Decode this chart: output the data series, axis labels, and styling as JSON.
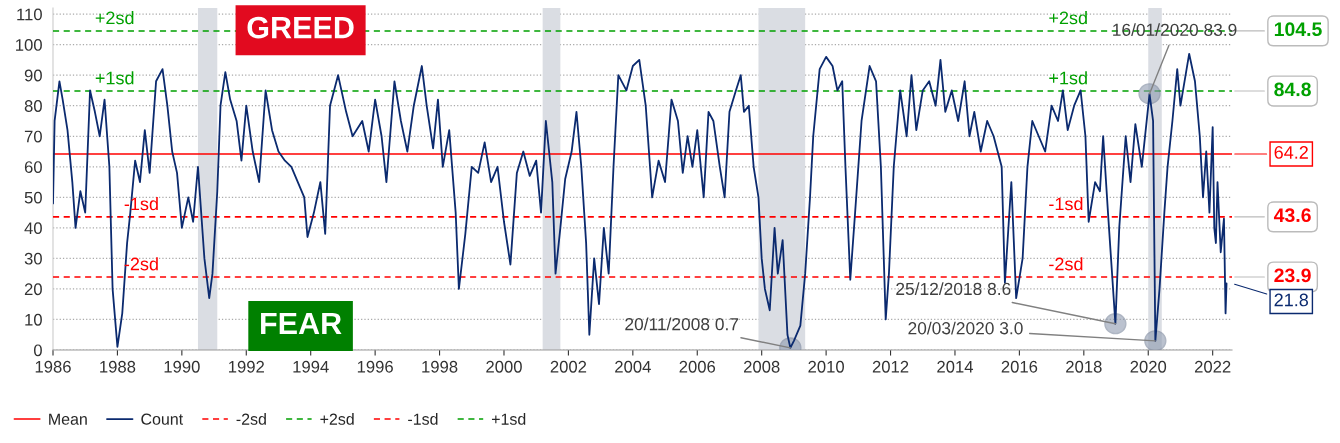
{
  "chart_data": {
    "type": "line",
    "x": [
      1986.0,
      1986.05,
      1986.2,
      1986.3,
      1986.45,
      1986.6,
      1986.7,
      1986.85,
      1987.0,
      1987.15,
      1987.3,
      1987.45,
      1987.6,
      1987.75,
      1987.85,
      1988.0,
      1988.15,
      1988.3,
      1988.4,
      1988.55,
      1988.7,
      1988.85,
      1989.0,
      1989.2,
      1989.4,
      1989.55,
      1989.7,
      1989.85,
      1990.0,
      1990.2,
      1990.35,
      1990.5,
      1990.7,
      1990.85,
      1990.95,
      1991.1,
      1991.2,
      1991.35,
      1991.5,
      1991.7,
      1991.85,
      1992.0,
      1992.2,
      1992.4,
      1992.6,
      1992.8,
      1993.0,
      1993.2,
      1993.4,
      1993.6,
      1993.8,
      1993.9,
      1994.1,
      1994.3,
      1994.45,
      1994.6,
      1994.85,
      1995.1,
      1995.3,
      1995.6,
      1995.8,
      1996.0,
      1996.2,
      1996.35,
      1996.6,
      1996.8,
      1997.0,
      1997.2,
      1997.45,
      1997.6,
      1997.8,
      1997.95,
      1998.1,
      1998.3,
      1998.5,
      1998.6,
      1998.8,
      1999.0,
      1999.2,
      1999.4,
      1999.6,
      1999.8,
      2000.0,
      2000.2,
      2000.4,
      2000.6,
      2000.8,
      2001.0,
      2001.15,
      2001.3,
      2001.5,
      2001.6,
      2001.75,
      2001.9,
      2002.1,
      2002.25,
      2002.4,
      2002.55,
      2002.65,
      2002.8,
      2002.95,
      2003.1,
      2003.25,
      2003.4,
      2003.55,
      2003.8,
      2004.0,
      2004.2,
      2004.4,
      2004.5,
      2004.6,
      2004.8,
      2005.0,
      2005.2,
      2005.4,
      2005.55,
      2005.7,
      2005.85,
      2006.0,
      2006.2,
      2006.35,
      2006.5,
      2006.7,
      2006.85,
      2007.0,
      2007.2,
      2007.35,
      2007.45,
      2007.6,
      2007.75,
      2007.9,
      2008.0,
      2008.1,
      2008.25,
      2008.4,
      2008.5,
      2008.65,
      2008.8,
      2008.89,
      2009.0,
      2009.2,
      2009.35,
      2009.5,
      2009.6,
      2009.8,
      2010.0,
      2010.2,
      2010.35,
      2010.5,
      2010.6,
      2010.75,
      2010.9,
      2011.1,
      2011.35,
      2011.55,
      2011.7,
      2011.85,
      2011.95,
      2012.1,
      2012.3,
      2012.5,
      2012.65,
      2012.8,
      2013.0,
      2013.2,
      2013.4,
      2013.55,
      2013.7,
      2013.9,
      2014.1,
      2014.3,
      2014.45,
      2014.6,
      2014.8,
      2015.0,
      2015.2,
      2015.45,
      2015.55,
      2015.75,
      2015.9,
      2016.1,
      2016.25,
      2016.4,
      2016.6,
      2016.8,
      2017.0,
      2017.2,
      2017.35,
      2017.5,
      2017.7,
      2017.9,
      2018.05,
      2018.15,
      2018.35,
      2018.5,
      2018.6,
      2018.75,
      2018.98,
      2019.1,
      2019.3,
      2019.45,
      2019.6,
      2019.8,
      2020.04,
      2020.15,
      2020.22,
      2020.35,
      2020.5,
      2020.6,
      2020.75,
      2020.9,
      2021.0,
      2021.27,
      2021.45,
      2021.6,
      2021.7,
      2021.8,
      2021.9,
      2022.0,
      2022.05,
      2022.1,
      2022.15,
      2022.25,
      2022.35,
      2022.4,
      2022.43
    ],
    "series": [
      {
        "name": "Count",
        "color": "#0b2a6f",
        "values": [
          48,
          75,
          88,
          82,
          72,
          55,
          40,
          52,
          45,
          85,
          78,
          70,
          82,
          60,
          20,
          1,
          12,
          35,
          45,
          62,
          55,
          72,
          58,
          88,
          92,
          80,
          65,
          58,
          40,
          50,
          42,
          60,
          30,
          17,
          25,
          52,
          80,
          91,
          82,
          75,
          62,
          80,
          65,
          55,
          85,
          72,
          65,
          62,
          60,
          55,
          50,
          37,
          45,
          55,
          38,
          80,
          90,
          78,
          70,
          75,
          65,
          82,
          70,
          55,
          88,
          75,
          65,
          80,
          93,
          80,
          66,
          82,
          60,
          72,
          45,
          20,
          38,
          60,
          58,
          68,
          55,
          60,
          42,
          28,
          58,
          65,
          57,
          62,
          45,
          75,
          55,
          25,
          40,
          56,
          65,
          78,
          60,
          35,
          5,
          30,
          15,
          40,
          25,
          60,
          90,
          85,
          93,
          95,
          80,
          65,
          50,
          62,
          55,
          82,
          75,
          58,
          70,
          60,
          72,
          50,
          78,
          75,
          60,
          50,
          78,
          85,
          90,
          78,
          80,
          60,
          50,
          30,
          20,
          13,
          40,
          25,
          36,
          5,
          0.7,
          3,
          8,
          25,
          50,
          70,
          92,
          96,
          93,
          85,
          88,
          60,
          23,
          45,
          75,
          93,
          88,
          60,
          10,
          25,
          60,
          85,
          70,
          90,
          72,
          85,
          88,
          80,
          95,
          78,
          85,
          75,
          88,
          70,
          78,
          65,
          75,
          70,
          60,
          22,
          55,
          17,
          30,
          60,
          75,
          70,
          65,
          80,
          75,
          85,
          72,
          80,
          85,
          70,
          42,
          55,
          52,
          70,
          45,
          8.6,
          40,
          70,
          55,
          74,
          60,
          83.9,
          75,
          3.0,
          20,
          45,
          60,
          75,
          92,
          80,
          97,
          88,
          70,
          50,
          65,
          45,
          73,
          40,
          35,
          55,
          32,
          43,
          12,
          21.8
        ]
      }
    ],
    "xlim": [
      1986,
      2022.6
    ],
    "xticks": [
      1986,
      1988,
      1990,
      1992,
      1994,
      1996,
      1998,
      2000,
      2002,
      2004,
      2006,
      2008,
      2010,
      2012,
      2014,
      2016,
      2018,
      2020,
      2022
    ],
    "ylim": [
      0,
      112
    ],
    "yticks": [
      0,
      10,
      20,
      30,
      40,
      50,
      60,
      70,
      80,
      90,
      100,
      110
    ],
    "grid": "y",
    "legend": "bottom",
    "ref_lines": [
      {
        "axis": "y",
        "value": 64.2,
        "label": "Mean",
        "color": "#ff0000",
        "line_style": "solid"
      },
      {
        "axis": "y",
        "value": 23.9,
        "label": "-2sd",
        "color": "#ff0000",
        "line_style": "dashed"
      },
      {
        "axis": "y",
        "value": 104.5,
        "label": "+2sd",
        "color": "#00a000",
        "line_style": "dashed"
      },
      {
        "axis": "y",
        "value": 43.6,
        "label": "-1sd",
        "color": "#ff0000",
        "line_style": "dashed"
      },
      {
        "axis": "y",
        "value": 84.8,
        "label": "+1sd",
        "color": "#00a000",
        "line_style": "dashed"
      }
    ],
    "bands": [
      {
        "axis": "x",
        "from": 1990.5,
        "to": 1991.1,
        "color": "#dadde3"
      },
      {
        "axis": "x",
        "from": 2001.2,
        "to": 2001.75,
        "color": "#dadde3"
      },
      {
        "axis": "x",
        "from": 2007.9,
        "to": 2009.35,
        "color": "#dadde3"
      },
      {
        "axis": "x",
        "from": 2020.0,
        "to": 2020.42,
        "color": "#dadde3"
      }
    ],
    "annotations": [
      "GREED",
      "FEAR",
      {
        "text": "+2sd",
        "x": 1987.3,
        "y": 104.5
      },
      {
        "text": "+2sd",
        "x": 2016.9,
        "y": 104.5
      },
      {
        "text": "+1sd",
        "x": 1987.3,
        "y": 84.8
      },
      {
        "text": "+1sd",
        "x": 2016.9,
        "y": 84.8
      },
      {
        "text": "-1sd",
        "x": 1988.2,
        "y": 43.6
      },
      {
        "text": "-1sd",
        "x": 2016.9,
        "y": 43.6
      },
      {
        "text": "-2sd",
        "x": 1988.2,
        "y": 23.9
      },
      {
        "text": "-2sd",
        "x": 2016.9,
        "y": 23.9
      },
      {
        "text": "16/01/2020 83.9",
        "x": 2020.04,
        "y": 83.9
      },
      {
        "text": "20/11/2008 0.7",
        "x": 2008.89,
        "y": 0.7
      },
      {
        "text": "25/12/2018 8.6",
        "x": 2018.98,
        "y": 8.6
      },
      {
        "text": "20/03/2020 3.0",
        "x": 2020.22,
        "y": 3.0
      },
      "64.2",
      "23.9",
      "104.5",
      "43.6",
      "84.8",
      "21.8"
    ]
  }
}
